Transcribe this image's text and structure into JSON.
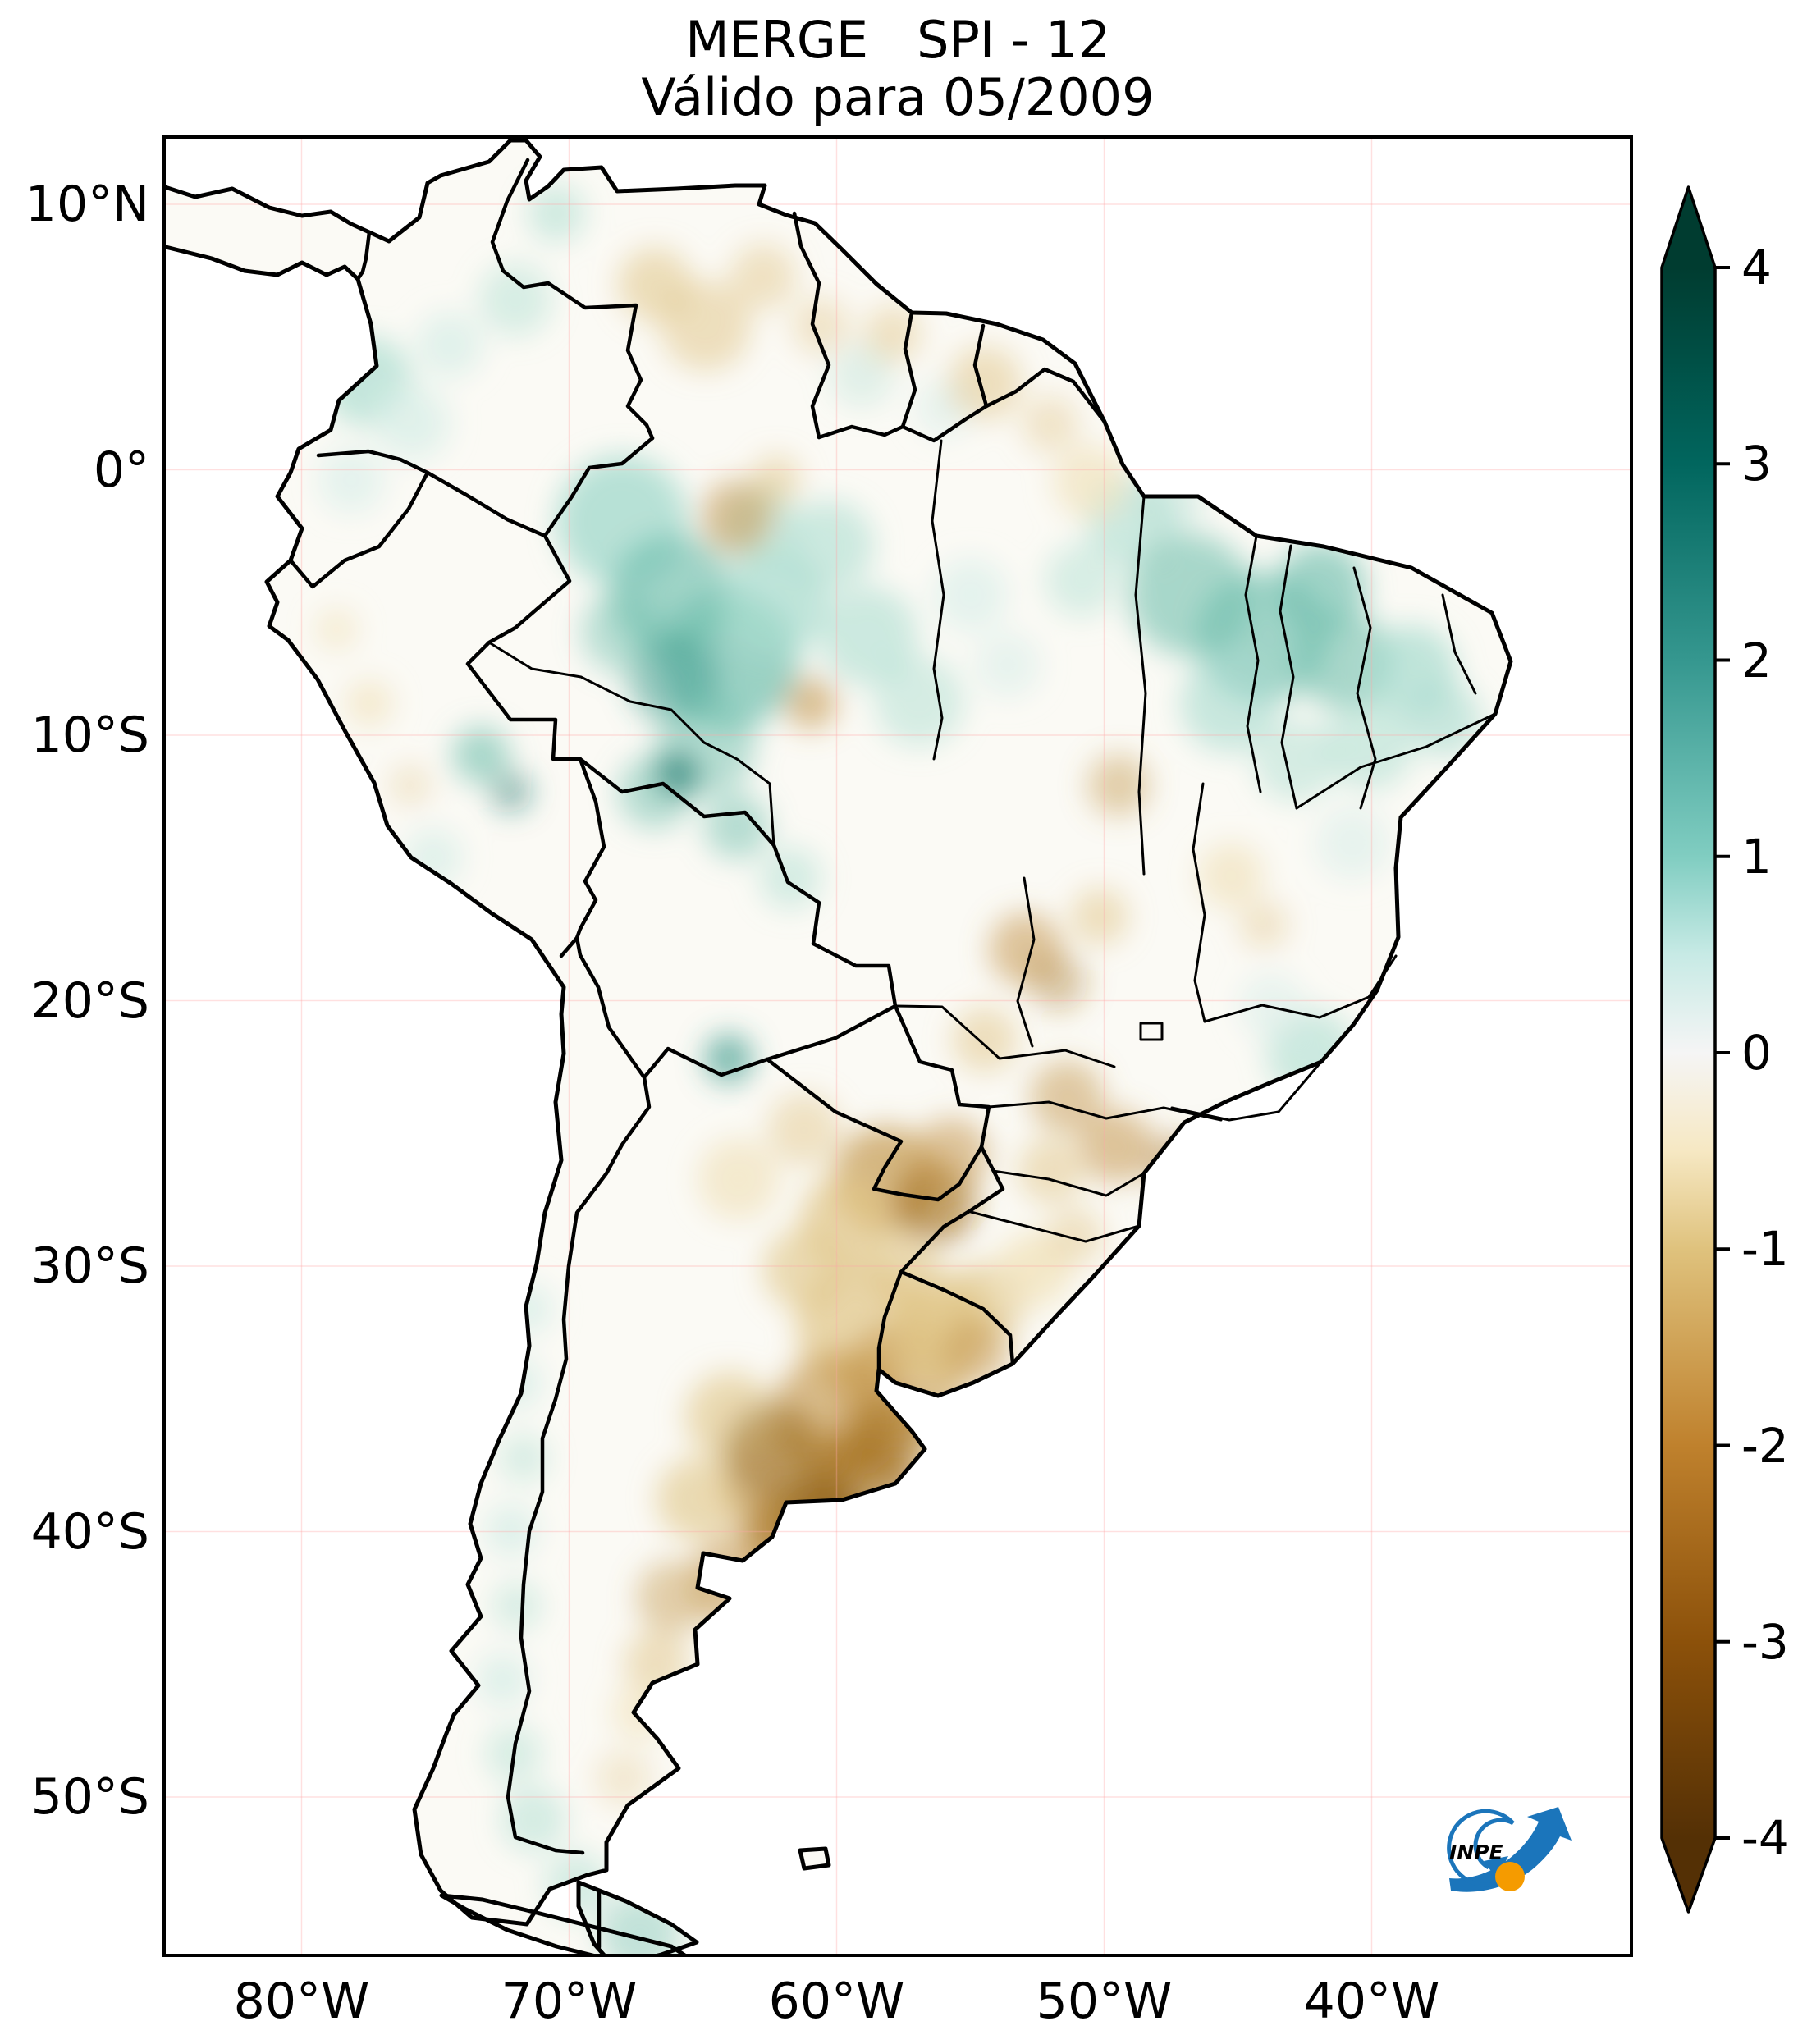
{
  "header": {
    "title": "MERGE   SPI - 12",
    "subtitle": "Válido para 05/2009"
  },
  "map": {
    "lat_ticks": [
      {
        "label": "10°N",
        "deg": 10
      },
      {
        "label": "0°",
        "deg": 0
      },
      {
        "label": "10°S",
        "deg": -10
      },
      {
        "label": "20°S",
        "deg": -20
      },
      {
        "label": "30°S",
        "deg": -30
      },
      {
        "label": "40°S",
        "deg": -40
      },
      {
        "label": "50°S",
        "deg": -50
      }
    ],
    "lon_ticks": [
      {
        "label": "80°W",
        "deg": -80
      },
      {
        "label": "70°W",
        "deg": -70
      },
      {
        "label": "60°W",
        "deg": -60
      },
      {
        "label": "50°W",
        "deg": -50
      },
      {
        "label": "40°W",
        "deg": -40
      }
    ]
  },
  "colorbar": {
    "min": -4,
    "max": 4,
    "tick_values": [
      4,
      3,
      2,
      1,
      0,
      -1,
      -2,
      -3,
      -4
    ],
    "tick_labels": [
      "4",
      "3",
      "2",
      "1",
      "0",
      "-1",
      "-2",
      "-3",
      "-4"
    ],
    "colormap": "BrBG",
    "wet_color": "#003c30",
    "neutral_color": "#f5f5f5",
    "dry_color": "#543005"
  },
  "logo": {
    "text": "INPE",
    "blue": "#1b75bb",
    "orange": "#f59b00"
  }
}
